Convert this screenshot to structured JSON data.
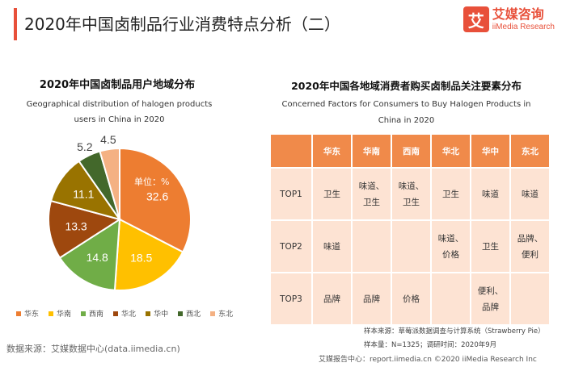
{
  "header": {
    "title": "2020年中国卤制品行业消费特点分析（二）",
    "brand_logo_char": "艾",
    "brand_cn": "艾媒咨询",
    "brand_en": "iiMedia Research",
    "accent_color": "#e8503a"
  },
  "left": {
    "title": "2020年中国卤制品用户地域分布",
    "subtitle_line1": "Geographical distribution of halogen products",
    "subtitle_line2": "users in China in 2020",
    "source": "数据来源：艾媒数据中心(data.iimedia.cn)"
  },
  "chart_data": {
    "type": "pie",
    "unit_label": "单位：%",
    "series": [
      {
        "name": "华东",
        "value": 32.6,
        "color": "#ed7d31"
      },
      {
        "name": "华南",
        "value": 18.5,
        "color": "#ffc000"
      },
      {
        "name": "西南",
        "value": 14.8,
        "color": "#70ad47"
      },
      {
        "name": "华北",
        "value": 13.3,
        "color": "#9e480e"
      },
      {
        "name": "华中",
        "value": 11.1,
        "color": "#997300"
      },
      {
        "name": "西北",
        "value": 5.2,
        "color": "#43682b"
      },
      {
        "name": "东北",
        "value": 4.5,
        "color": "#f4b183"
      }
    ],
    "legend_position": "bottom"
  },
  "right": {
    "title": "2020年中国各地域消费者购买卤制品关注要素分布",
    "subtitle_line1": "Concerned Factors for Consumers to Buy Halogen Products in",
    "subtitle_line2": "China in 2020",
    "table": {
      "columns": [
        "",
        "华东",
        "华南",
        "西南",
        "华北",
        "华中",
        "东北"
      ],
      "rows": [
        {
          "label": "TOP1",
          "cells": [
            [
              "卫生"
            ],
            [
              "味道、",
              "卫生"
            ],
            [
              "味道、",
              "卫生"
            ],
            [
              "卫生"
            ],
            [
              "味道"
            ],
            [
              "味道"
            ]
          ]
        },
        {
          "label": "TOP2",
          "cells": [
            [
              "味道"
            ],
            [
              ""
            ],
            [
              ""
            ],
            [
              "味道、",
              "价格"
            ],
            [
              "卫生"
            ],
            [
              "品牌、",
              "便利"
            ]
          ]
        },
        {
          "label": "TOP3",
          "cells": [
            [
              "品牌"
            ],
            [
              "品牌"
            ],
            [
              "价格"
            ],
            [
              ""
            ],
            [
              "便利、",
              "品牌"
            ],
            [
              ""
            ]
          ]
        }
      ]
    },
    "sample_source": "样本来源：草莓派数据调查与计算系统（Strawberry Pie）",
    "sample_size": "样本量：N=1325；调研时间：2020年9月"
  },
  "footer": "艾媒报告中心：report.iimedia.cn  ©2020  iiMedia Research  Inc"
}
